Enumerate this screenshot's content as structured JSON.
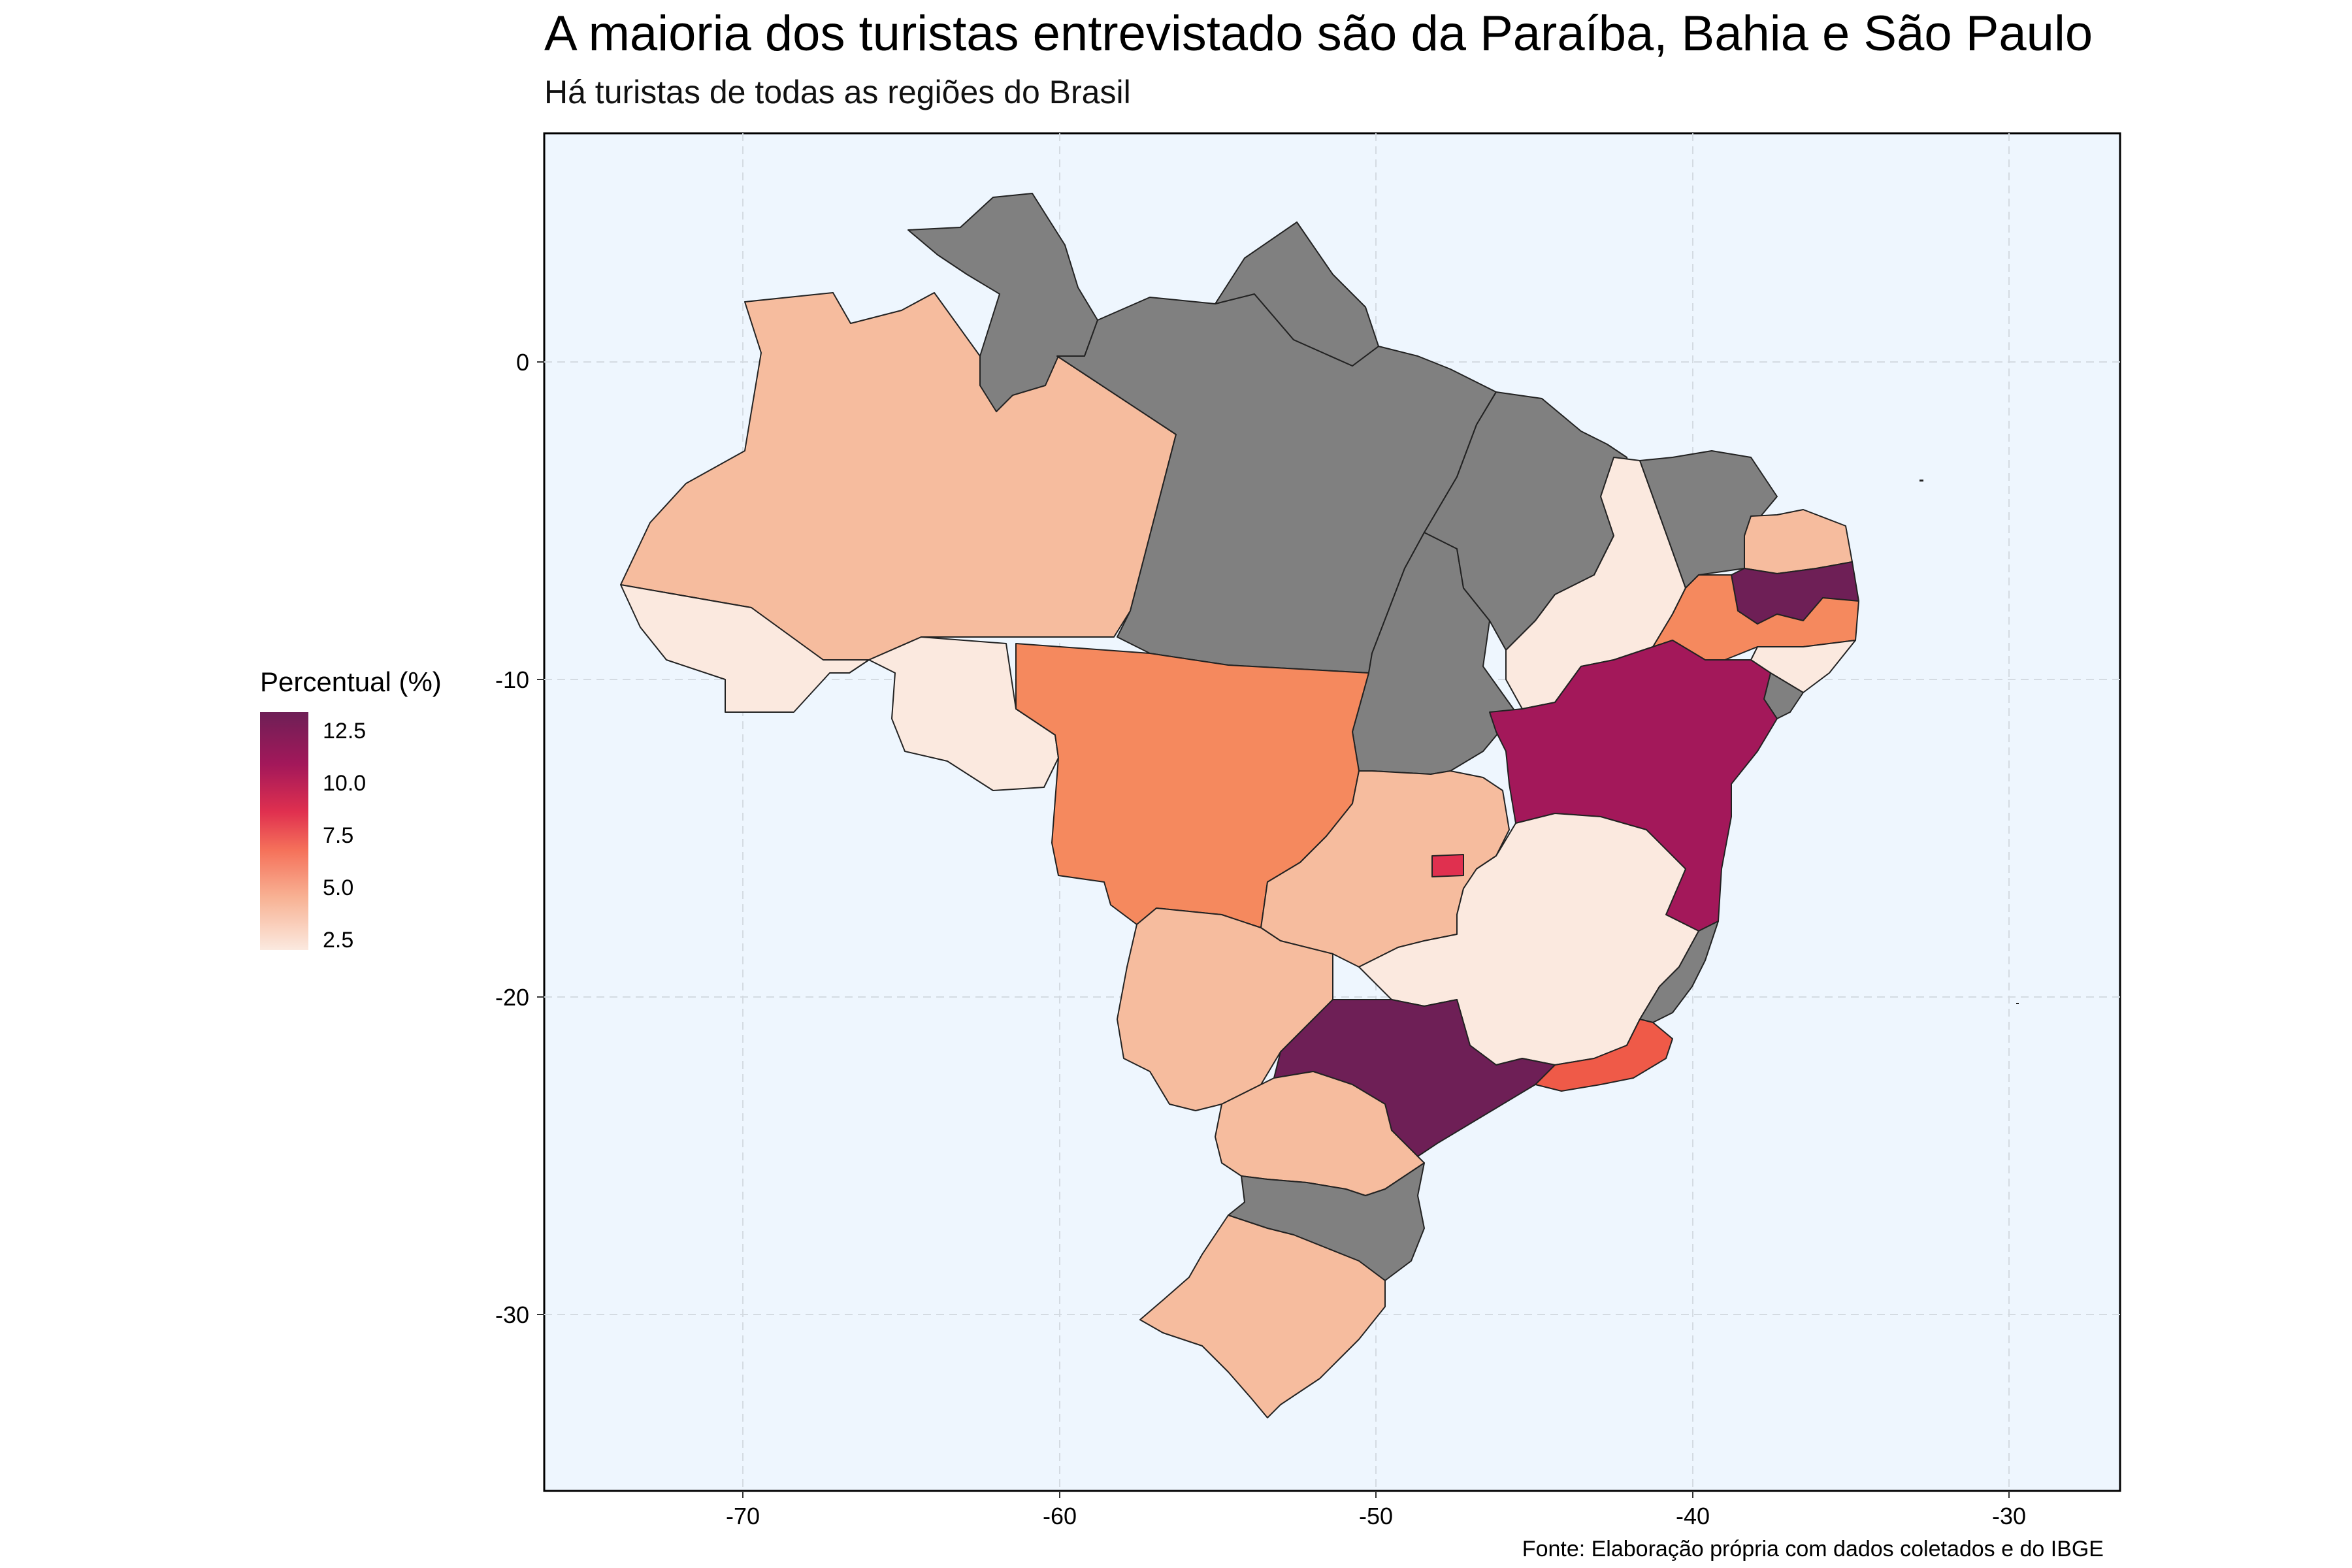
{
  "title": "A maioria dos turistas entrevistado são da Paraíba, Bahia e São Paulo",
  "subtitle": "Há turistas de todas as regiões do Brasil",
  "caption": "Fonte: Elaboração própria com dados coletados e do IBGE",
  "legend": {
    "title": "Percentual (%)",
    "labels": [
      "12.5",
      "10.0",
      "7.5",
      "5.0",
      "2.5"
    ]
  },
  "axes": {
    "x_ticks": [
      "-70",
      "-60",
      "-50",
      "-40",
      "-30"
    ],
    "y_ticks": [
      "0",
      "-10",
      "-20",
      "-30"
    ]
  },
  "colors": {
    "panel_background": "#eef6fe",
    "grid": "#d4dbe2",
    "no_data": "#808080",
    "border": "#000000"
  },
  "states": [
    {
      "name": "Amazonas",
      "value": 4.0,
      "color": "#f6bc9e"
    },
    {
      "name": "Acre",
      "value": 2.0,
      "color": "#fbe9df"
    },
    {
      "name": "Rondônia",
      "value": 2.0,
      "color": "#fbe9df"
    },
    {
      "name": "Roraima",
      "value": null,
      "color": "#808080"
    },
    {
      "name": "Pará",
      "value": null,
      "color": "#808080"
    },
    {
      "name": "Amapá",
      "value": null,
      "color": "#808080"
    },
    {
      "name": "Maranhão",
      "value": null,
      "color": "#808080"
    },
    {
      "name": "Tocantins",
      "value": null,
      "color": "#808080"
    },
    {
      "name": "Piauí",
      "value": 2.0,
      "color": "#fbe9df"
    },
    {
      "name": "Ceará",
      "value": null,
      "color": "#808080"
    },
    {
      "name": "Rio Grande do Norte",
      "value": 4.0,
      "color": "#f6bc9e"
    },
    {
      "name": "Paraíba",
      "value": 13.0,
      "color": "#6e1f56"
    },
    {
      "name": "Pernambuco",
      "value": 6.0,
      "color": "#f5895e"
    },
    {
      "name": "Alagoas",
      "value": 2.0,
      "color": "#fbe9df"
    },
    {
      "name": "Sergipe",
      "value": null,
      "color": "#808080"
    },
    {
      "name": "Bahia",
      "value": 11.0,
      "color": "#a3185a"
    },
    {
      "name": "Mato Grosso",
      "value": 6.0,
      "color": "#f5895e"
    },
    {
      "name": "Goiás",
      "value": 4.0,
      "color": "#f6bc9e"
    },
    {
      "name": "Distrito Federal",
      "value": 8.0,
      "color": "#e0304f"
    },
    {
      "name": "Minas Gerais",
      "value": 2.0,
      "color": "#fbe9df"
    },
    {
      "name": "Espírito Santo",
      "value": null,
      "color": "#808080"
    },
    {
      "name": "Mato Grosso do Sul",
      "value": 4.0,
      "color": "#f6bc9e"
    },
    {
      "name": "São Paulo",
      "value": 13.0,
      "color": "#6e1f56"
    },
    {
      "name": "Rio de Janeiro",
      "value": 7.0,
      "color": "#ef5a48"
    },
    {
      "name": "Paraná",
      "value": 4.0,
      "color": "#f6bc9e"
    },
    {
      "name": "Santa Catarina",
      "value": null,
      "color": "#808080"
    },
    {
      "name": "Rio Grande do Sul",
      "value": 4.0,
      "color": "#f6bc9e"
    }
  ]
}
